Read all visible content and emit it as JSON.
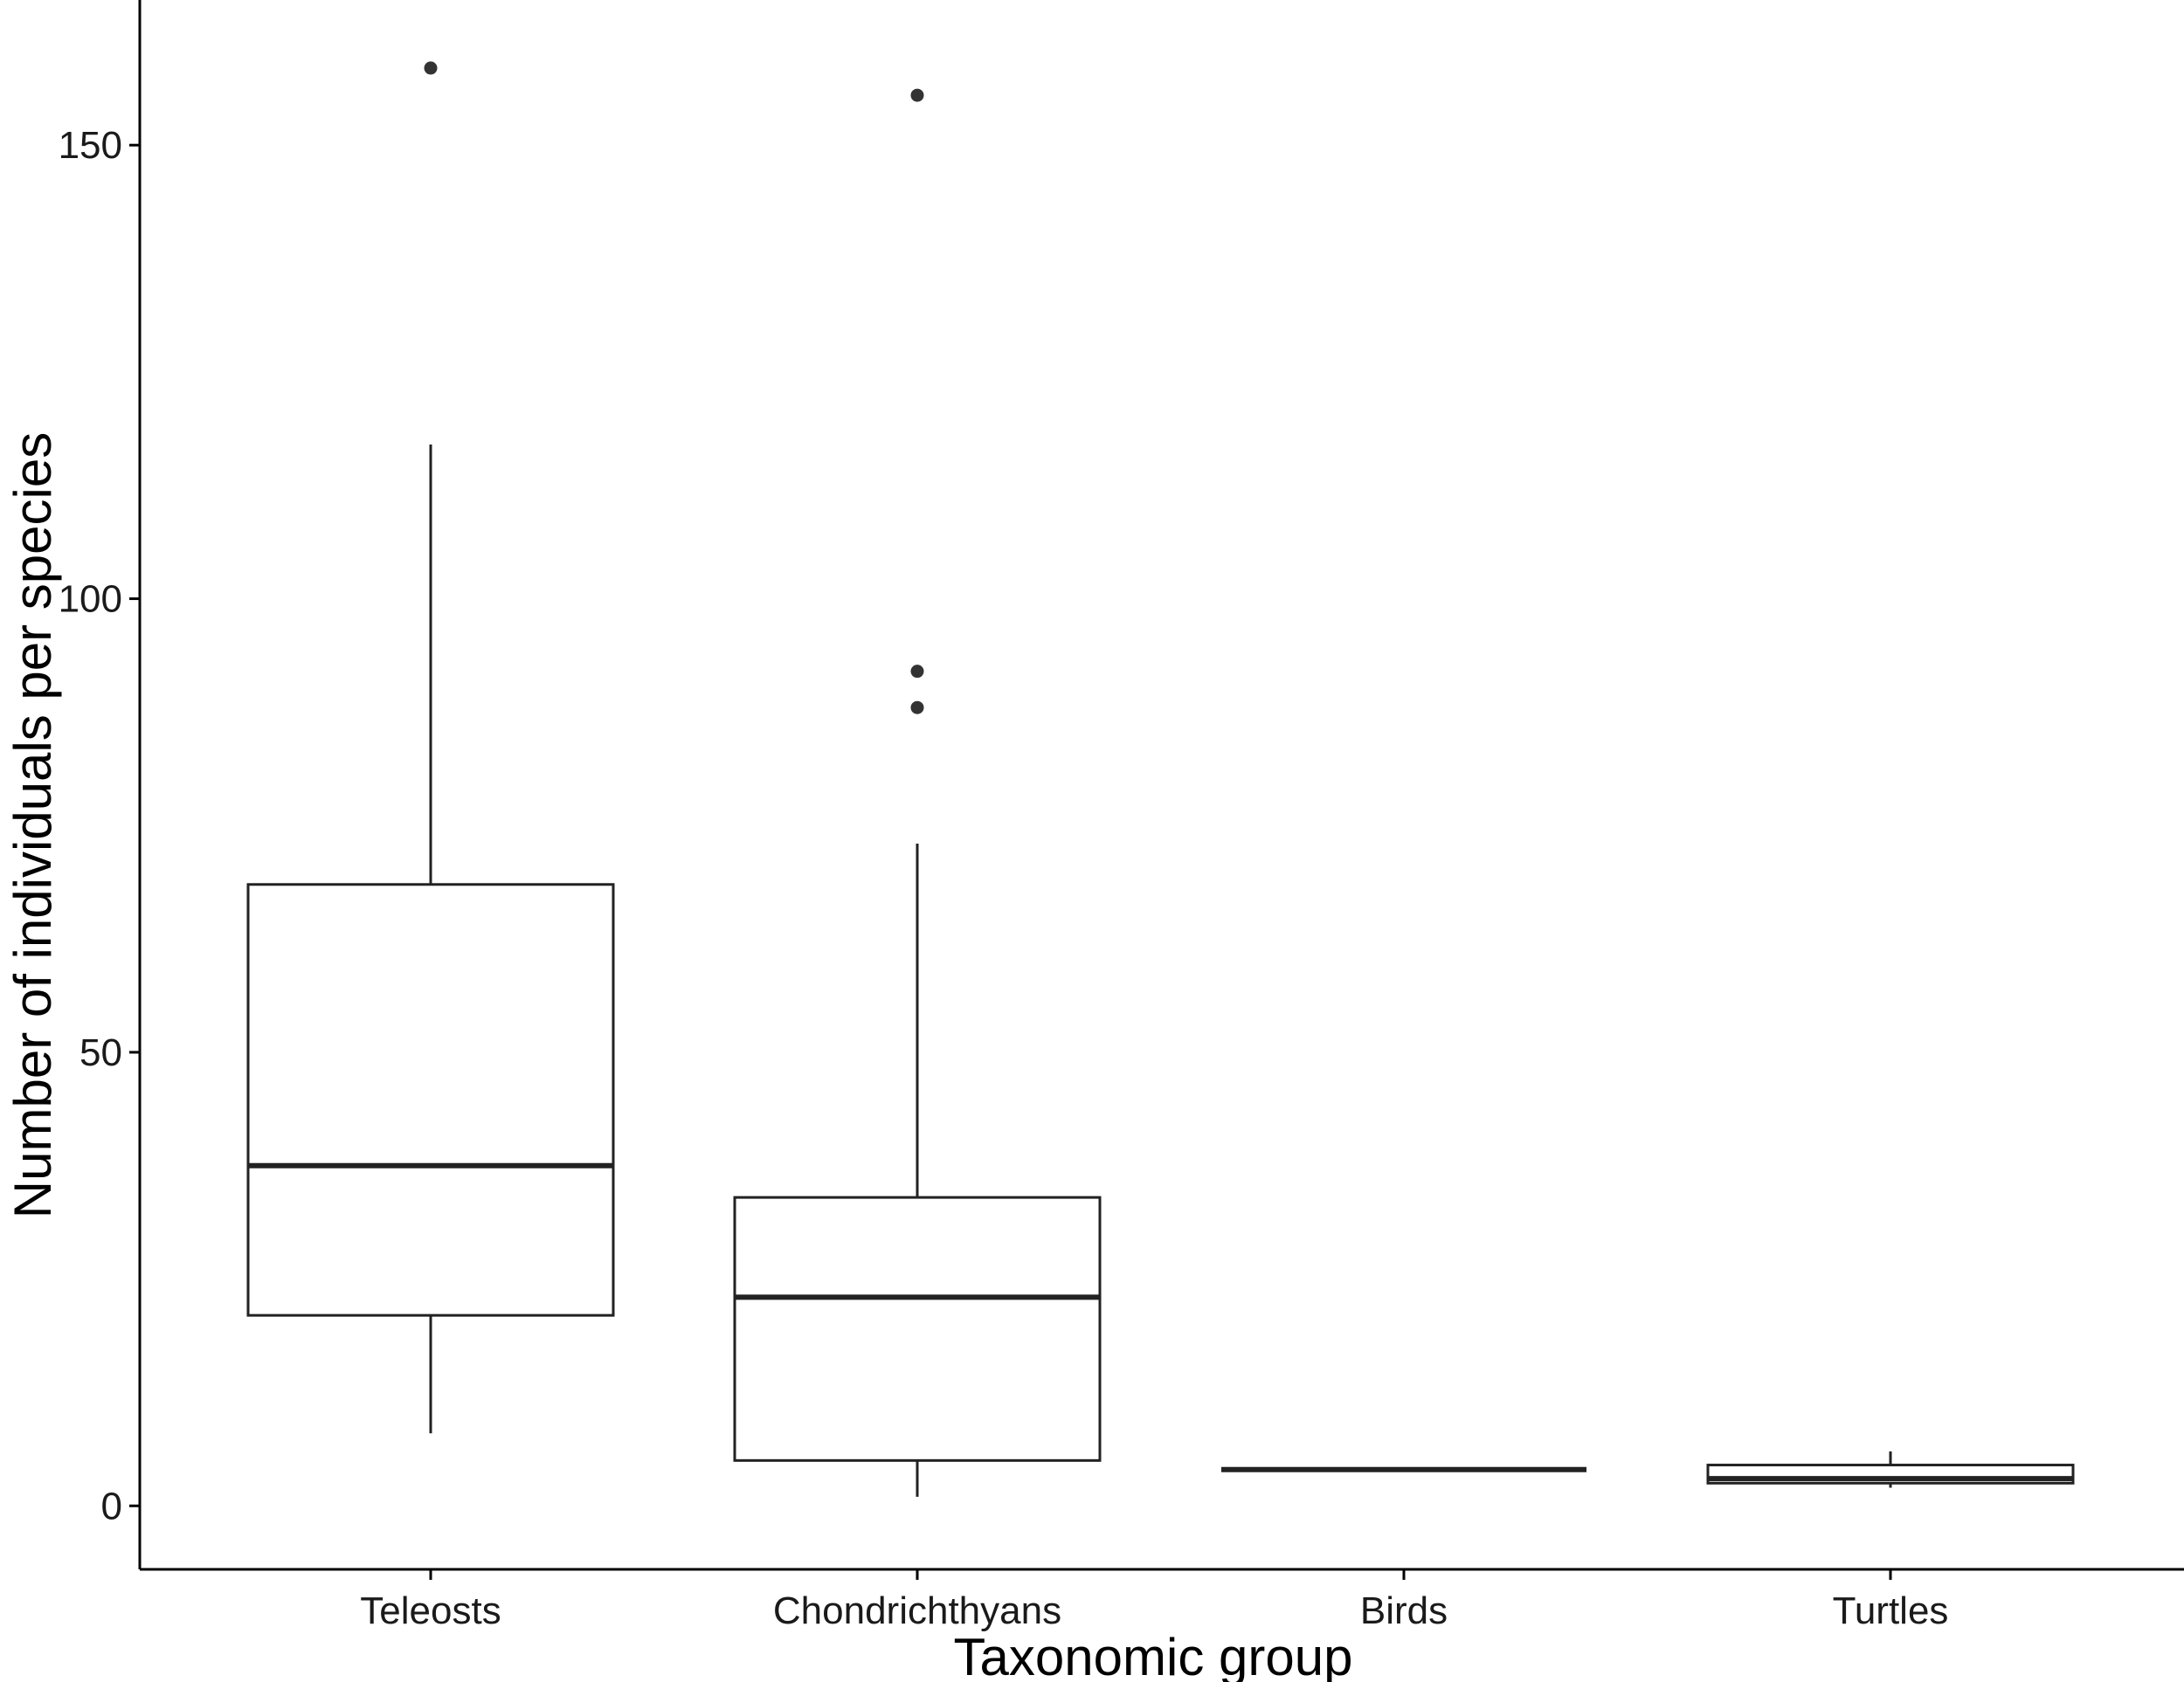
{
  "chart_data": {
    "type": "box",
    "xlabel": "Taxonomic group",
    "ylabel": "Number of individuals per species",
    "ylim": [
      -7,
      166
    ],
    "yticks": [
      0,
      50,
      100,
      150
    ],
    "grid": false,
    "categories": [
      "Teleosts",
      "Chondrichthyans",
      "Birds",
      "Turtles"
    ],
    "boxes": [
      {
        "category": "Teleosts",
        "whisker_low": 8,
        "q1": 21,
        "median": 37.5,
        "q3": 68.5,
        "whisker_high": 117,
        "outliers": [
          158.5
        ]
      },
      {
        "category": "Chondrichthyans",
        "whisker_low": 1,
        "q1": 5,
        "median": 23,
        "q3": 34,
        "whisker_high": 73,
        "outliers": [
          155.5,
          92,
          88
        ]
      },
      {
        "category": "Birds",
        "whisker_low": 4,
        "q1": 4,
        "median": 4,
        "q3": 4,
        "whisker_high": 4,
        "outliers": []
      },
      {
        "category": "Turtles",
        "whisker_low": 2,
        "q1": 2.5,
        "median": 3,
        "q3": 4.5,
        "whisker_high": 6,
        "outliers": []
      }
    ],
    "colors": {
      "line": "#222222",
      "fill": "#ffffff",
      "outlier": "#333333"
    }
  }
}
